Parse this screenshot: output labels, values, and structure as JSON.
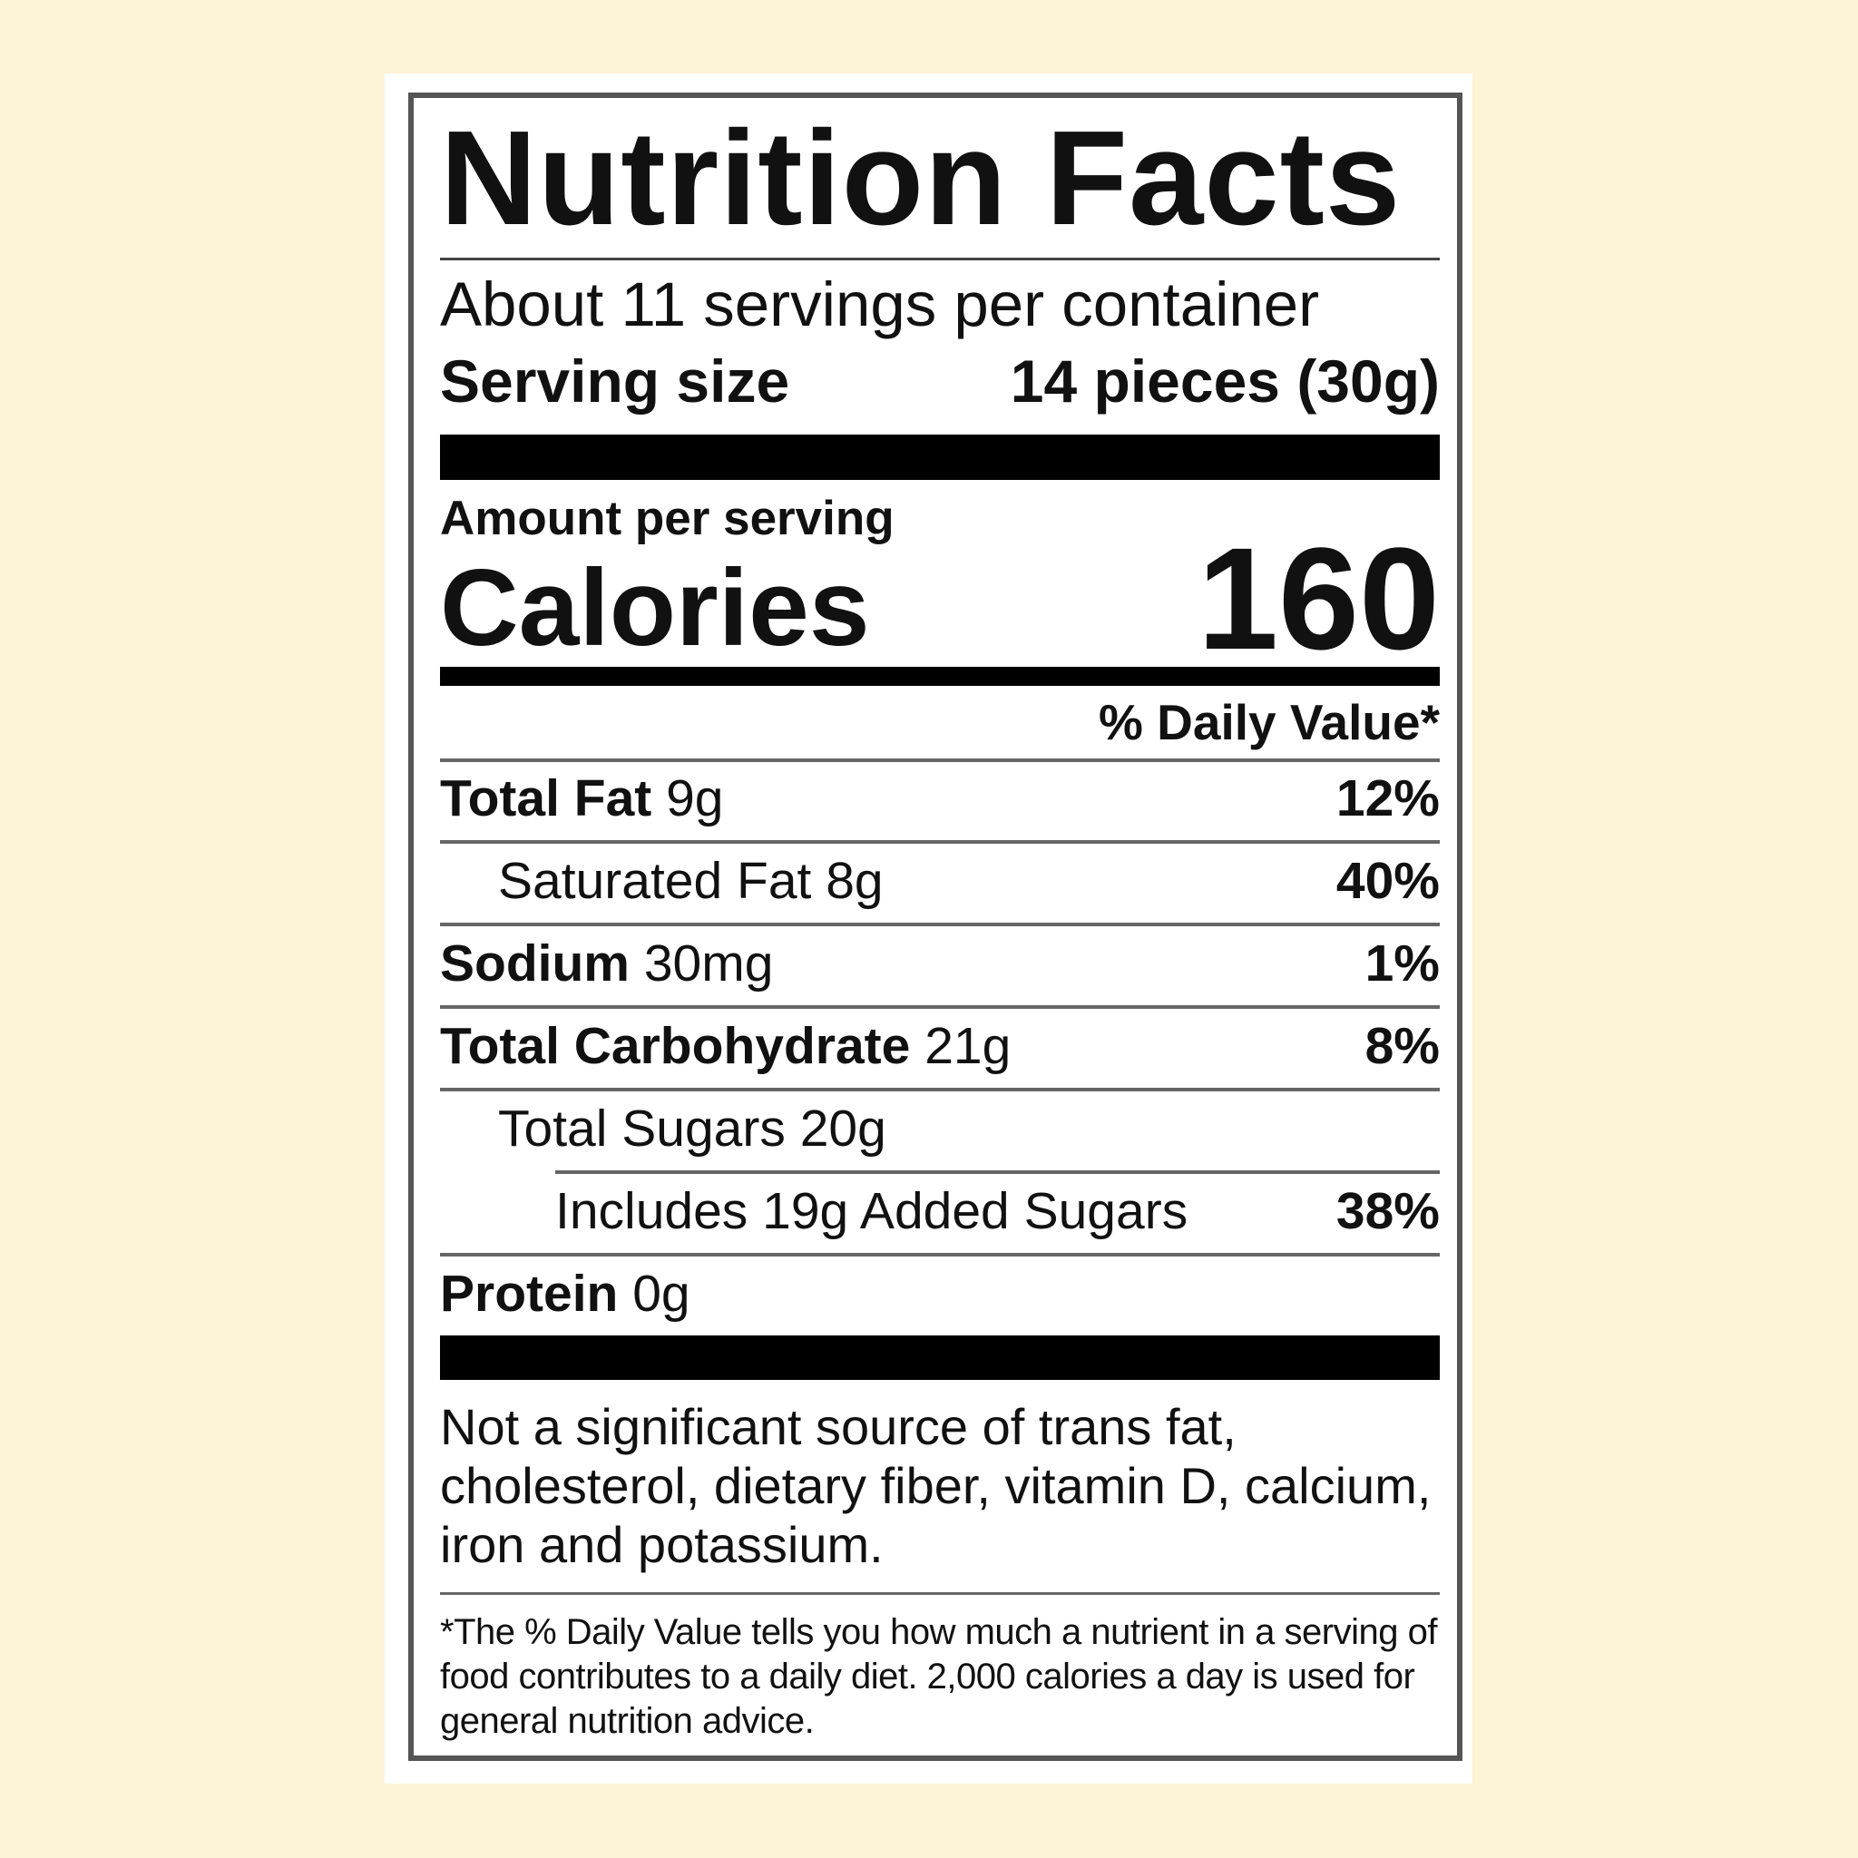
{
  "label": {
    "title": "Nutrition Facts",
    "servings_per_container": "About 11 servings per container",
    "serving_size_label": "Serving size",
    "serving_size_value": "14 pieces (30g)",
    "amount_per_serving": "Amount per serving",
    "calories_label": "Calories",
    "calories_value": "160",
    "daily_value_header": "% Daily Value*",
    "nutrients": [
      {
        "name": "Total Fat",
        "amount": "9g",
        "dv": "12%",
        "bold": true,
        "indent": 0
      },
      {
        "name": "Saturated Fat",
        "amount": "8g",
        "dv": "40%",
        "bold": false,
        "indent": 1
      },
      {
        "name": "Sodium",
        "amount": "30mg",
        "dv": "1%",
        "bold": true,
        "indent": 0
      },
      {
        "name": "Total Carbohydrate",
        "amount": "21g",
        "dv": "8%",
        "bold": true,
        "indent": 0
      },
      {
        "name": "Total Sugars",
        "amount": "20g",
        "dv": "",
        "bold": false,
        "indent": 1
      },
      {
        "name": "Includes 19g Added Sugars",
        "amount": "",
        "dv": "38%",
        "bold": false,
        "indent": 2
      },
      {
        "name": "Protein",
        "amount": "0g",
        "dv": "",
        "bold": true,
        "indent": 0
      }
    ],
    "not_significant": "Not a significant source of trans fat, cholesterol, dietary fiber, vitamin D, calcium, iron and potassium.",
    "footnote": "*The % Daily Value tells you how much a nutrient in a serving of food contributes to a daily diet. 2,000 calories a day is used for general nutrition advice."
  },
  "colors": {
    "background": "#fdf3d6",
    "panel": "#ffffff",
    "text": "#111111"
  }
}
